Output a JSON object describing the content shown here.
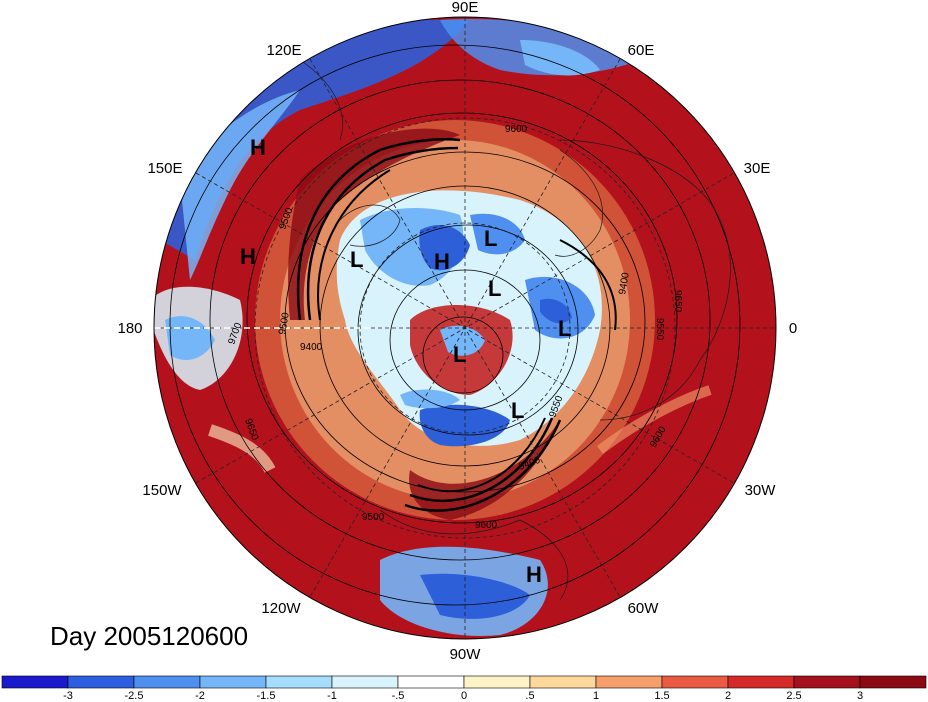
{
  "title": "Day 2005120600",
  "longitude_labels": [
    "90E",
    "120E",
    "60E",
    "150E",
    "30E",
    "180",
    "0",
    "150W",
    "30W",
    "120W",
    "60W",
    "90W"
  ],
  "pressure_centers": [
    "H",
    "H",
    "L",
    "H",
    "L",
    "L",
    "L",
    "L",
    "L",
    "H"
  ],
  "contour_labels": [
    "9600",
    "9500",
    "9400",
    "9500",
    "9650",
    "9700",
    "9550",
    "9600",
    "9400",
    "9500",
    "9650",
    "9550",
    "9600",
    "9400"
  ],
  "colorbar": {
    "ticks": [
      "-3",
      "-2.5",
      "-2",
      "-1.5",
      "-1",
      "-.5",
      "0",
      ".5",
      "1",
      "1.5",
      "2",
      "2.5",
      "3"
    ],
    "colors": [
      "#1a1acc",
      "#2e5ee0",
      "#4e8ff0",
      "#74b6f8",
      "#a6dcfc",
      "#d8f3fc",
      "#ffffff",
      "#fdf3c7",
      "#fcd89a",
      "#f5a06c",
      "#ec5a44",
      "#d42a2a",
      "#a3101e",
      "#8b0a14"
    ]
  },
  "colors": {
    "map_red": "#b3121c",
    "map_orange": "#e8874f",
    "map_blue": "#2d5fd9",
    "map_light_blue": "#9cd6f8"
  }
}
